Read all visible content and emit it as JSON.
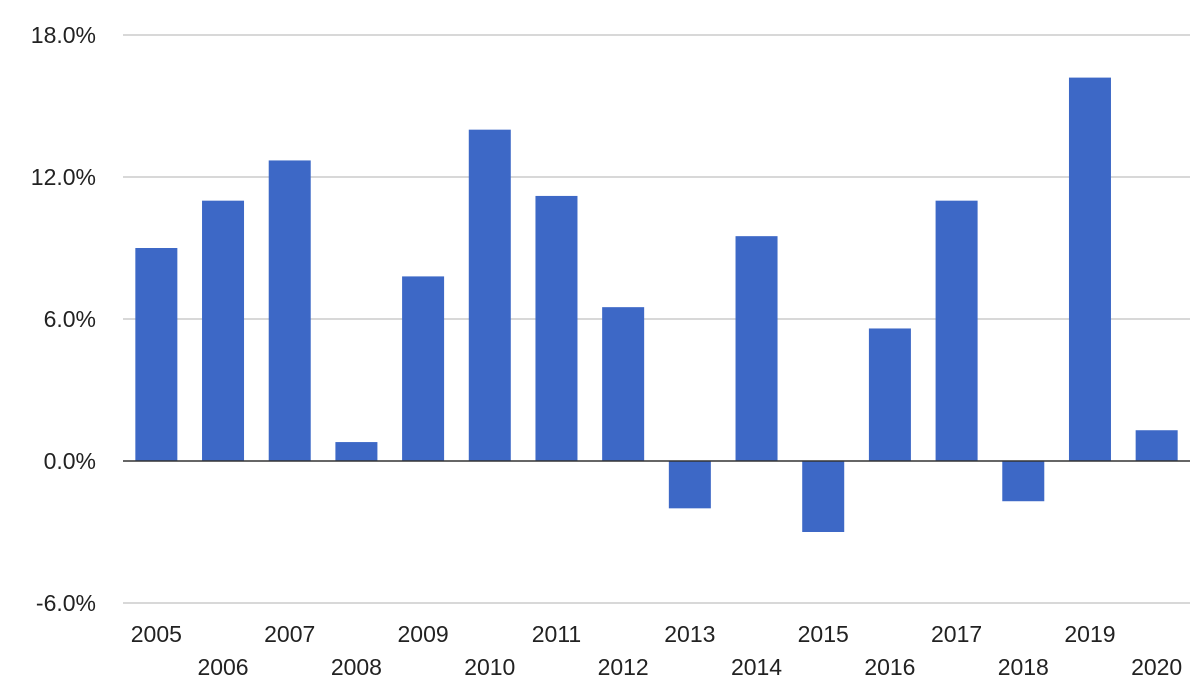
{
  "chart_data": {
    "type": "bar",
    "title": "",
    "xlabel": "",
    "ylabel": "",
    "categories": [
      "2005",
      "2006",
      "2007",
      "2008",
      "2009",
      "2010",
      "2011",
      "2012",
      "2013",
      "2014",
      "2015",
      "2016",
      "2017",
      "2018",
      "2019",
      "2020"
    ],
    "values": [
      9.0,
      11.0,
      12.7,
      0.8,
      7.8,
      14.0,
      11.2,
      6.5,
      -2.0,
      9.5,
      -3.0,
      5.6,
      11.0,
      -1.7,
      16.2,
      1.3
    ],
    "ylim": [
      -6.0,
      18.0
    ],
    "yticks": [
      -6.0,
      0.0,
      6.0,
      12.0,
      18.0
    ],
    "ytick_labels": [
      "-6.0%",
      "0.0%",
      "6.0%",
      "12.0%",
      "18.0%"
    ],
    "grid": true,
    "legend": "none",
    "bar_color": "#3d68c6",
    "grid_color": "#cccccc",
    "zero_line_color": "#333333"
  }
}
